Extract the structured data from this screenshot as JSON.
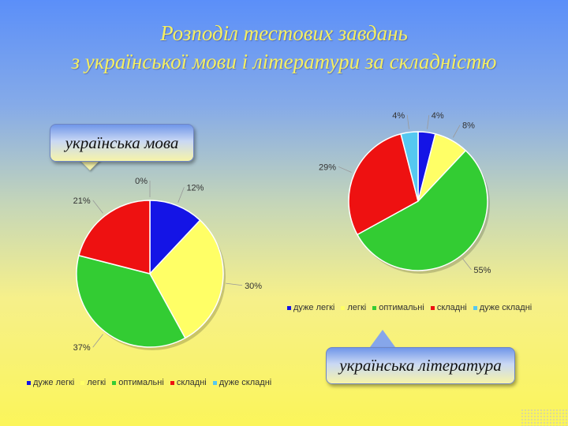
{
  "slide": {
    "title_line1": "Розподіл тестових завдань",
    "title_line2": "з української мови і літератури за складністю"
  },
  "callouts": {
    "language": "українська мова",
    "literature": "українська література"
  },
  "chart_data": [
    {
      "type": "pie",
      "subject": "українська мова",
      "categories": [
        "дуже легкі",
        "легкі",
        "оптимальні",
        "складні",
        "дуже складні"
      ],
      "values": [
        12,
        30,
        37,
        21,
        0
      ],
      "labels": [
        "12%",
        "30%",
        "37%",
        "21%",
        "0%"
      ],
      "colors": [
        "#1414e6",
        "#ffff66",
        "#33cc33",
        "#ee1111",
        "#55c8f0"
      ],
      "legend": "bottom"
    },
    {
      "type": "pie",
      "subject": "українська література",
      "categories": [
        "дуже легкі",
        "легкі",
        "оптимальні",
        "складні",
        "дуже складні"
      ],
      "values": [
        4,
        8,
        55,
        29,
        4
      ],
      "labels": [
        "4%",
        "8%",
        "55%",
        "29%",
        "4%"
      ],
      "colors": [
        "#1414e6",
        "#ffff66",
        "#33cc33",
        "#ee1111",
        "#55c8f0"
      ],
      "legend": "bottom"
    }
  ]
}
